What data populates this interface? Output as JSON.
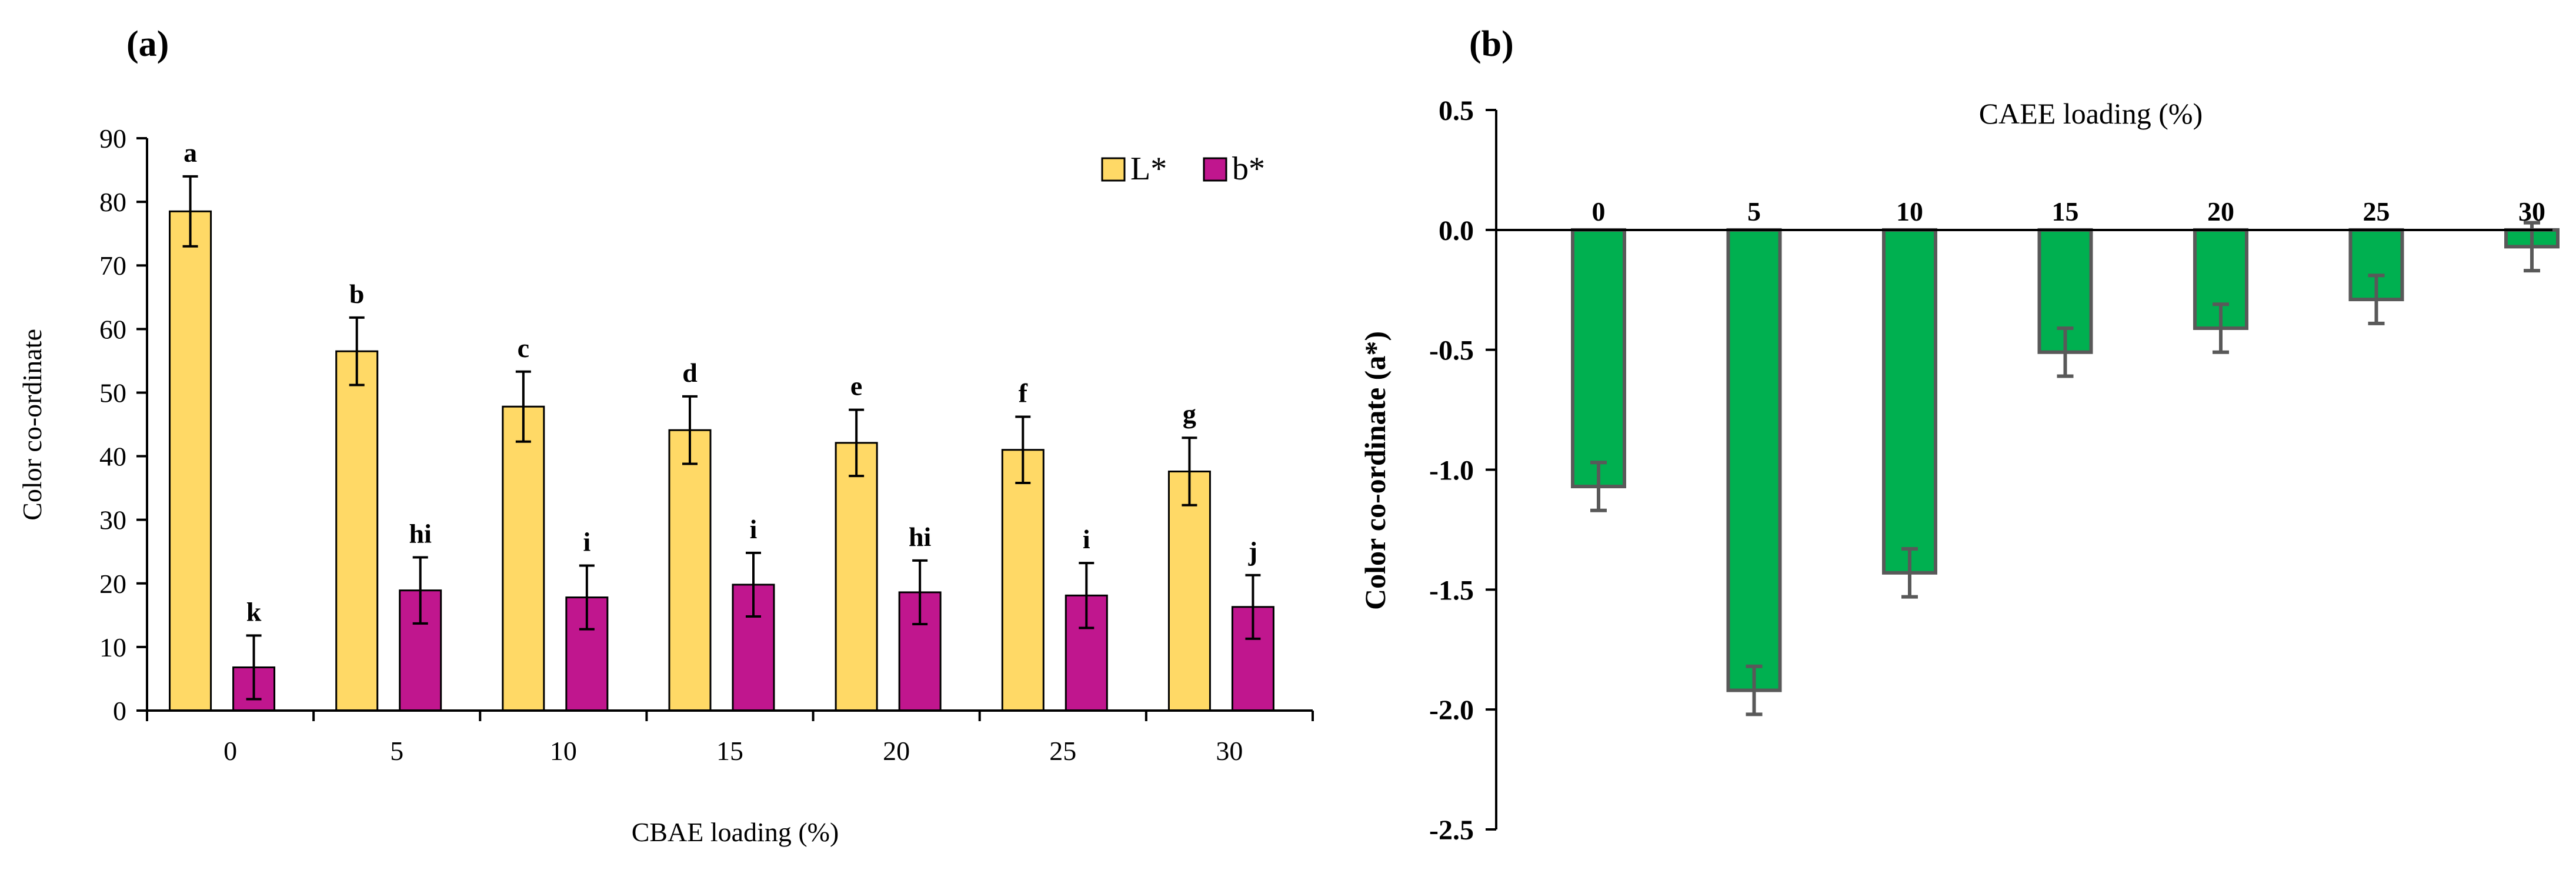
{
  "figure": {
    "panel_a_label": "(a)",
    "panel_b_label": "(b)"
  },
  "chart_data": [
    {
      "type": "bar",
      "panel": "(a)",
      "categories": [
        "0",
        "5",
        "10",
        "15",
        "20",
        "25",
        "30"
      ],
      "series": [
        {
          "name": "L*",
          "color": "#FFD966",
          "values": [
            78.5,
            56.5,
            47.8,
            44.1,
            42.1,
            41.0,
            37.6
          ],
          "errors": [
            5.5,
            5.3,
            5.5,
            5.3,
            5.2,
            5.2,
            5.3
          ],
          "letters": [
            "a",
            "b",
            "c",
            "d",
            "e",
            "f",
            "g"
          ]
        },
        {
          "name": "b*",
          "color": "#C0168E",
          "values": [
            6.8,
            18.9,
            17.8,
            19.8,
            18.6,
            18.1,
            16.3
          ],
          "errors": [
            5.0,
            5.2,
            5.0,
            5.0,
            5.0,
            5.1,
            5.0
          ],
          "letters": [
            "k",
            "hi",
            "i",
            "i",
            "hi",
            "i",
            "j"
          ]
        }
      ],
      "xlabel": "CBAE loading (%)",
      "ylabel": "Color co-ordinate",
      "ylim": [
        0,
        90
      ],
      "yticks": [
        "0",
        "10",
        "20",
        "30",
        "40",
        "50",
        "60",
        "70",
        "80",
        "90"
      ],
      "grid": false,
      "legend_position": "top-right"
    },
    {
      "type": "bar",
      "panel": "(b)",
      "categories": [
        "0",
        "5",
        "10",
        "15",
        "20",
        "25",
        "30"
      ],
      "series": [
        {
          "color": "#00B050",
          "values": [
            -1.07,
            -1.92,
            -1.43,
            -0.51,
            -0.41,
            -0.29,
            -0.07
          ],
          "errors": [
            0.1,
            0.1,
            0.1,
            0.1,
            0.1,
            0.1,
            0.1
          ]
        }
      ],
      "xlabel": "CAEE loading (%)",
      "ylabel": "Color co-ordinate (a*)",
      "ylim": [
        -2.5,
        0.5
      ],
      "yticks": [
        "0.5",
        "0.0",
        "-0.5",
        "-1.0",
        "-1.5",
        "-2.0",
        "-2.5"
      ],
      "grid": false
    }
  ]
}
